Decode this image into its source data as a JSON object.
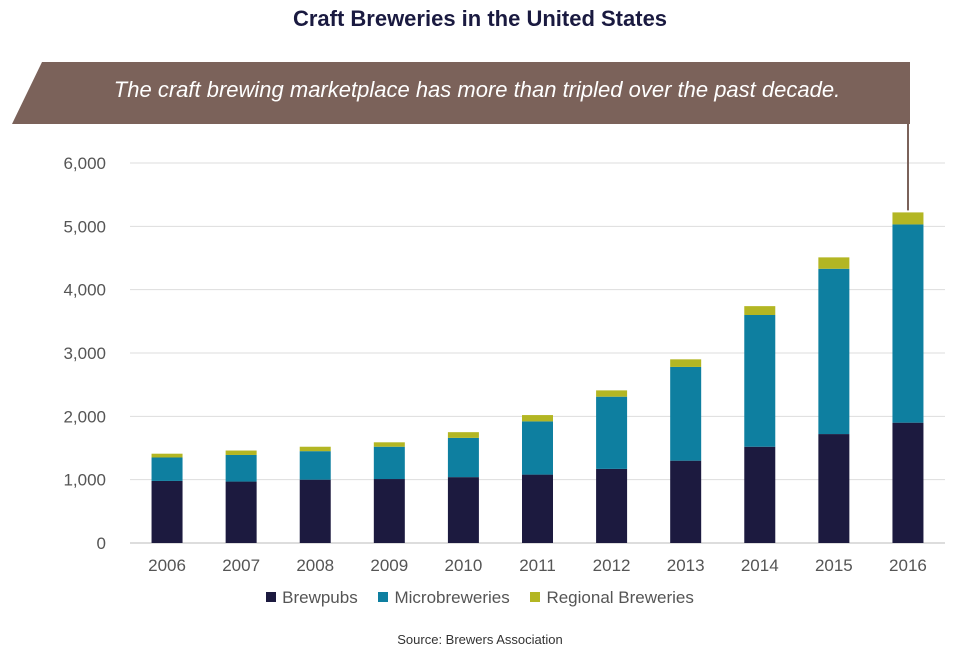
{
  "title": "Craft Breweries in the United States",
  "banner": "The craft brewing marketplace has more than tripled over the past decade.",
  "source": "Source: Brewers Association",
  "colors": {
    "brewpubs": "#1c1a3f",
    "micro": "#0e7fa0",
    "regional": "#b3b623",
    "banner": "#7b625a",
    "grid": "#dddddd",
    "axis_text": "#555555"
  },
  "chart_data": {
    "type": "bar",
    "stacked": true,
    "categories": [
      "2006",
      "2007",
      "2008",
      "2009",
      "2010",
      "2011",
      "2012",
      "2013",
      "2014",
      "2015",
      "2016"
    ],
    "series": [
      {
        "name": "Brewpubs",
        "color": "#1c1a3f",
        "values": [
          980,
          970,
          1000,
          1010,
          1040,
          1080,
          1170,
          1300,
          1520,
          1720,
          1900
        ]
      },
      {
        "name": "Microbreweries",
        "color": "#0e7fa0",
        "values": [
          370,
          420,
          450,
          510,
          620,
          840,
          1140,
          1480,
          2080,
          2610,
          3130
        ]
      },
      {
        "name": "Regional Breweries",
        "color": "#b3b623",
        "values": [
          60,
          70,
          70,
          70,
          90,
          100,
          100,
          120,
          140,
          180,
          190
        ]
      }
    ],
    "ylim": [
      0,
      6000
    ],
    "yticks": [
      0,
      1000,
      2000,
      3000,
      4000,
      5000,
      6000
    ],
    "ytick_labels": [
      "0",
      "1,000",
      "2,000",
      "3,000",
      "4,000",
      "5,000",
      "6,000"
    ],
    "grid": true,
    "legend_position": "bottom"
  }
}
